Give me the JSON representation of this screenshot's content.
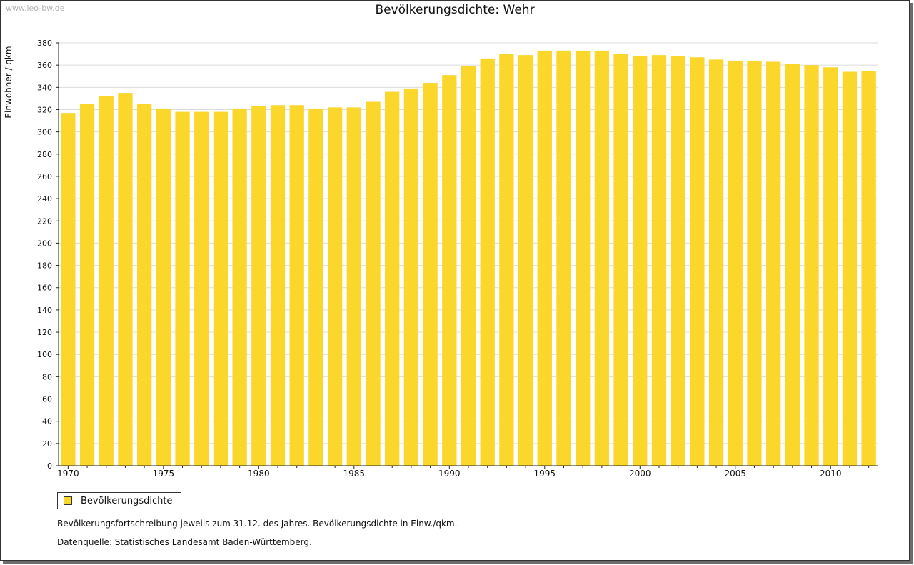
{
  "watermark": "www.leo-bw.de",
  "colors": {
    "bar": "#FBD62B",
    "grid": "#dcdcdc",
    "axis": "#222222"
  },
  "legend": {
    "label": "Bevölkerungsdichte"
  },
  "notes": {
    "line1": "Bevölkerungsfortschreibung jeweils zum 31.12. des Jahres. Bevölkerungsdichte in Einw./qkm.",
    "line2": "Datenquelle: Statistisches Landesamt Baden-Württemberg."
  },
  "chart_data": {
    "type": "bar",
    "title": "Bevölkerungsdichte: Wehr",
    "xlabel": "",
    "ylabel": "Einwohner / qkm",
    "ylim": [
      0,
      380
    ],
    "ytick_step": 20,
    "xtick_labels": [
      "1970",
      "1975",
      "1980",
      "1985",
      "1990",
      "1995",
      "2000",
      "2005",
      "2010"
    ],
    "grid": true,
    "series_name": "Bevölkerungsdichte",
    "categories": [
      1970,
      1971,
      1972,
      1973,
      1974,
      1975,
      1976,
      1977,
      1978,
      1979,
      1980,
      1981,
      1982,
      1983,
      1984,
      1985,
      1986,
      1987,
      1988,
      1989,
      1990,
      1991,
      1992,
      1993,
      1994,
      1995,
      1996,
      1997,
      1998,
      1999,
      2000,
      2001,
      2002,
      2003,
      2004,
      2005,
      2006,
      2007,
      2008,
      2009,
      2010,
      2011,
      2012
    ],
    "values": [
      317,
      325,
      332,
      335,
      325,
      321,
      318,
      318,
      318,
      321,
      323,
      324,
      324,
      321,
      322,
      322,
      327,
      336,
      339,
      344,
      351,
      359,
      366,
      370,
      369,
      373,
      373,
      373,
      373,
      370,
      368,
      369,
      368,
      367,
      365,
      364,
      364,
      363,
      361,
      360,
      358,
      354,
      355
    ]
  }
}
